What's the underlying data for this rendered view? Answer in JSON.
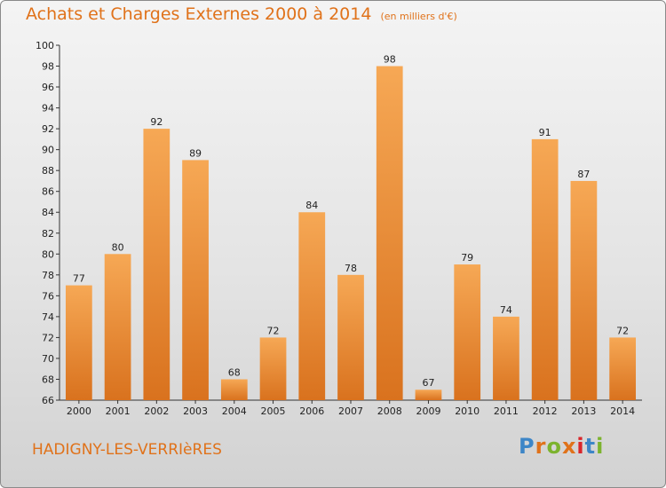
{
  "header": {
    "title": "Achats et Charges Externes 2000 à 2014",
    "unit_note": "(en milliers d'€)"
  },
  "footer": {
    "commune": "HADIGNY-LES-VERRIèRES",
    "logo_letters": [
      "P",
      "r",
      "o",
      "x",
      "i",
      "t",
      "i"
    ],
    "logo_colors": [
      "#3d86c7",
      "#e0721a",
      "#7cb32e",
      "#e0721a",
      "#d9252a",
      "#3d86c7",
      "#7cb32e"
    ]
  },
  "colors": {
    "title": "#e0721a",
    "bar_light": "#f6a855",
    "bar_dark": "#d9721e"
  },
  "chart_data": {
    "type": "bar",
    "categories": [
      "2000",
      "2001",
      "2002",
      "2003",
      "2004",
      "2005",
      "2006",
      "2007",
      "2008",
      "2009",
      "2010",
      "2011",
      "2012",
      "2013",
      "2014"
    ],
    "values": [
      77,
      80,
      92,
      89,
      68,
      72,
      84,
      78,
      98,
      67,
      79,
      74,
      91,
      87,
      72
    ],
    "ylim": [
      66,
      100
    ],
    "yticks": [
      66,
      68,
      70,
      72,
      74,
      76,
      78,
      80,
      82,
      84,
      86,
      88,
      90,
      92,
      94,
      96,
      98,
      100
    ],
    "grid": false
  }
}
